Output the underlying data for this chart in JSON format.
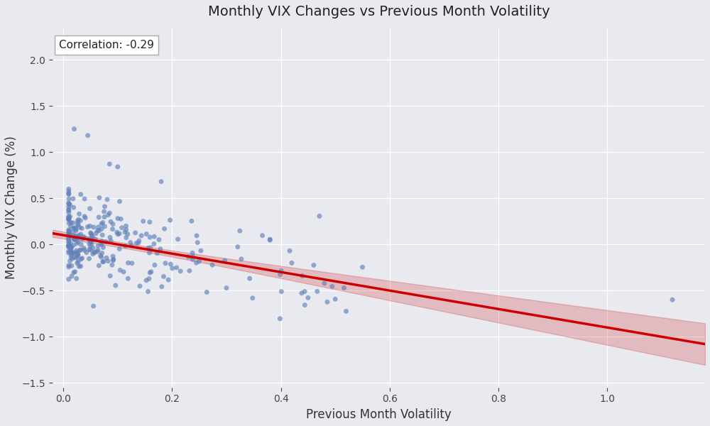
{
  "title": "Monthly VIX Changes vs Previous Month Volatility",
  "xlabel": "Previous Month Volatility",
  "ylabel": "Monthly VIX Change (%)",
  "correlation": -0.29,
  "correlation_label": "Correlation: -0.29",
  "xlim": [
    -0.02,
    1.18
  ],
  "ylim": [
    -1.55,
    2.35
  ],
  "background_color": "#e8eaf0",
  "fig_facecolor": "#e8eaf0",
  "scatter_color": "#6080b8",
  "scatter_alpha": 0.65,
  "scatter_size": 25,
  "trend_color": "#cc0000",
  "trend_lw": 2.5,
  "ci_color": "#cc0000",
  "ci_alpha": 0.2,
  "seed": 42,
  "slope": -1.0,
  "intercept": 0.1,
  "noise_std": 0.22
}
